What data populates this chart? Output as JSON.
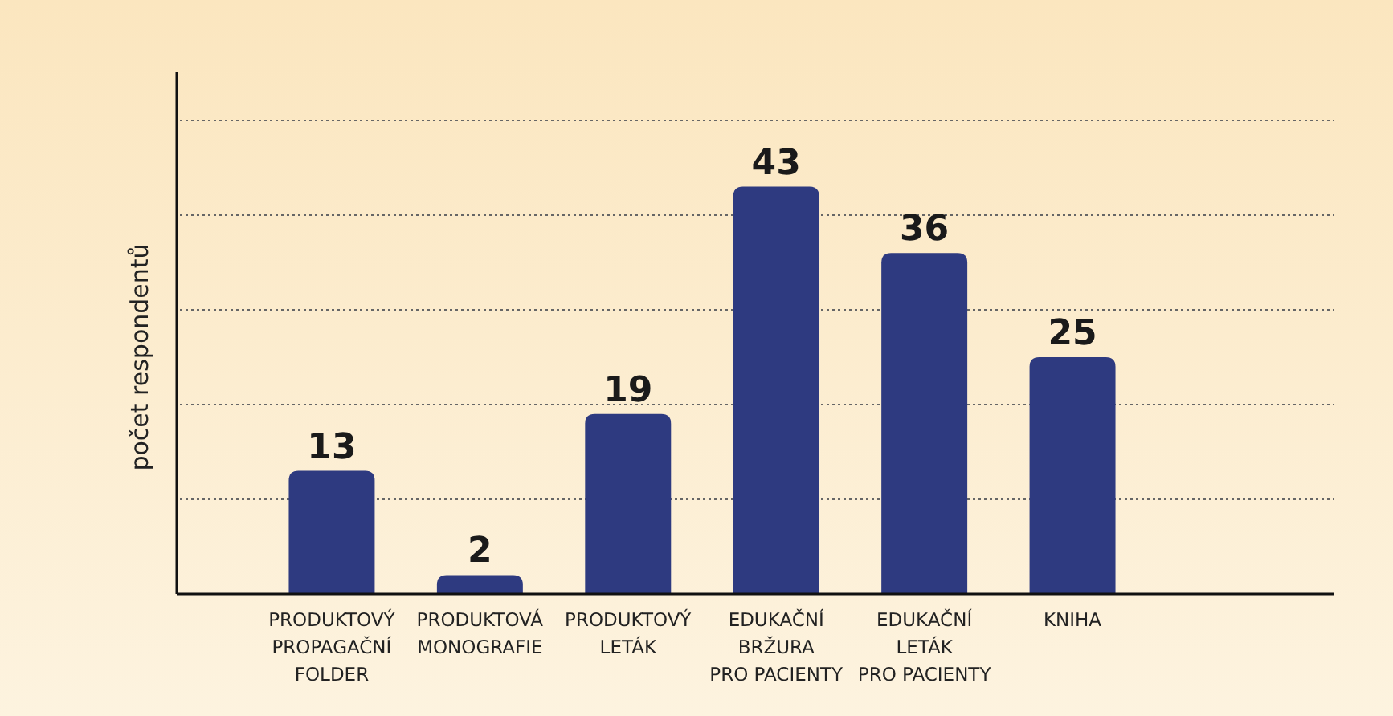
{
  "chart_data": {
    "type": "bar",
    "ylabel": "počet respondentů",
    "categories": [
      "PRODUKTOVÝ\nPROPAGAČNÍ\nFOLDER",
      "PRODUKTOVÁ\nMONOGRAFIE",
      "PRODUKTOVÝ\nLETÁK",
      "EDUKAČNÍ\nBRŽURA\nPRO PACIENTY",
      "EDUKAČNÍ\nLETÁK\nPRO PACIENTY",
      "KNIHA"
    ],
    "values": [
      13,
      2,
      19,
      43,
      36,
      25
    ],
    "color": "#2e3a80",
    "data_labels": true,
    "ylim": [
      0,
      50
    ],
    "yticks": [
      {
        "value": 10,
        "label": null
      },
      {
        "value": 20,
        "label": null
      },
      {
        "value": 30,
        "label": null
      },
      {
        "value": 40,
        "label": null
      },
      {
        "value": 50,
        "label": null
      }
    ],
    "tick_labels": "x",
    "grid": "y"
  }
}
